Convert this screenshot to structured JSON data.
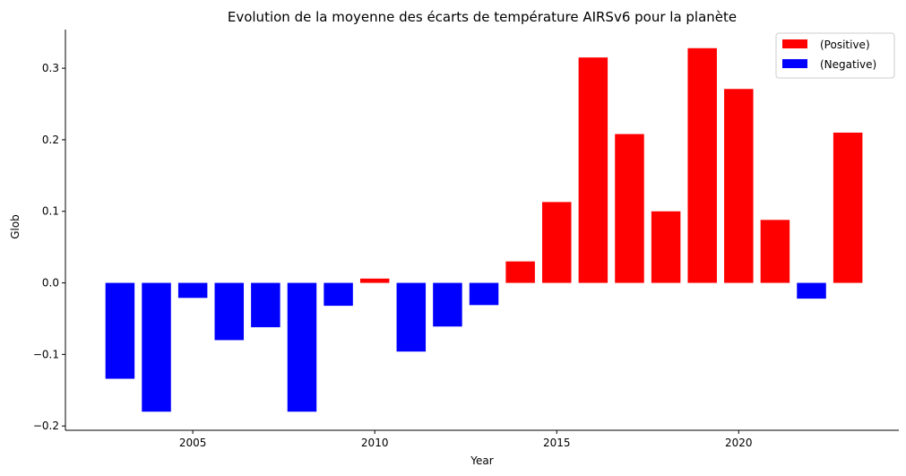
{
  "chart_data": {
    "type": "bar",
    "title": "Evolution de la moyenne des écarts de température AIRSv6 pour la planète",
    "xlabel": "Year",
    "ylabel": "Glob",
    "x": [
      2003,
      2004,
      2005,
      2006,
      2007,
      2008,
      2009,
      2010,
      2011,
      2012,
      2013,
      2014,
      2015,
      2016,
      2017,
      2018,
      2019,
      2020,
      2021,
      2022,
      2023
    ],
    "values": [
      -0.134,
      -0.18,
      -0.021,
      -0.08,
      -0.062,
      -0.18,
      -0.032,
      0.006,
      -0.096,
      -0.061,
      -0.031,
      0.03,
      0.113,
      0.315,
      0.208,
      0.1,
      0.328,
      0.271,
      0.088,
      -0.022,
      0.21
    ],
    "xlim": [
      2001.5,
      2024.4
    ],
    "ylim": [
      -0.206,
      0.354
    ],
    "xticks": [
      2005,
      2010,
      2015,
      2020
    ],
    "yticks": [
      -0.2,
      -0.1,
      0.0,
      0.1,
      0.2,
      0.3
    ],
    "ytick_labels": [
      "−0.2",
      "−0.1",
      "0.0",
      "0.1",
      "0.2",
      "0.3"
    ],
    "legend": {
      "placement": "top-right",
      "entries": [
        {
          "label": "(Positive)",
          "color": "#ff0000"
        },
        {
          "label": "(Negative)",
          "color": "#0000ff"
        }
      ]
    },
    "colors": {
      "positive": "#ff0000",
      "negative": "#0000ff"
    },
    "grid": false
  }
}
